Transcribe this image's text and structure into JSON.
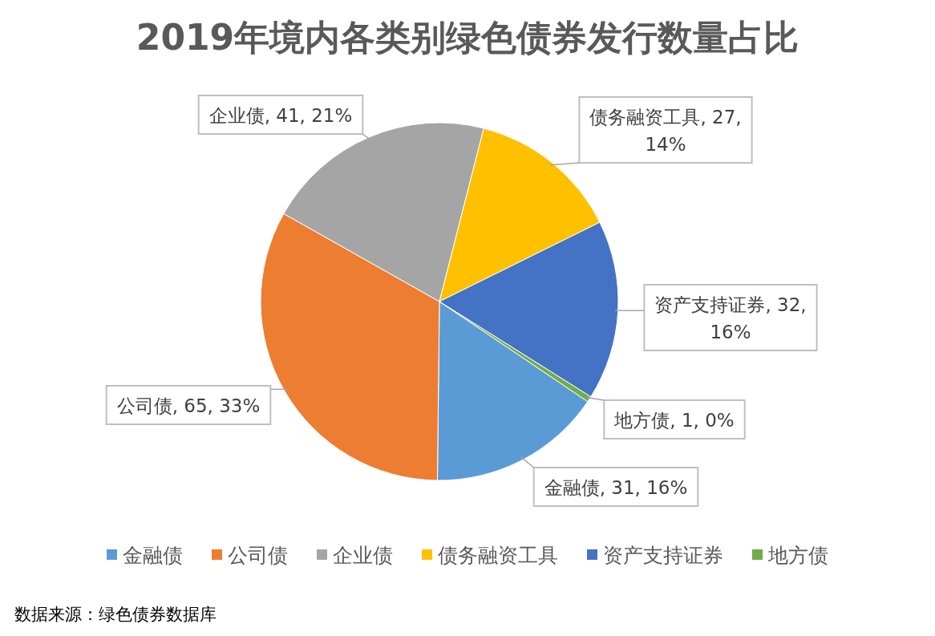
{
  "chart_data": {
    "type": "pie",
    "title": "2019年境内各类别绿色债券发行数量占比",
    "categories": [
      "金融债",
      "公司债",
      "企业债",
      "债务融资工具",
      "资产支持证券",
      "地方债"
    ],
    "values": [
      31,
      65,
      41,
      27,
      32,
      1
    ],
    "colors": [
      "#5b9bd5",
      "#ed7d31",
      "#a5a5a5",
      "#ffc000",
      "#4472c4",
      "#70ad47"
    ],
    "value_labels": [
      "金融债, 31, 16%",
      "公司债, 65, 33%",
      "企业债, 41, 21%",
      "债务融资工具, 27, 14%",
      "资产支持证券, 32, 16%",
      "地方债, 1, 0%"
    ],
    "legend": "bottom",
    "annotations": [
      "数据来源：绿色债券数据库"
    ]
  }
}
